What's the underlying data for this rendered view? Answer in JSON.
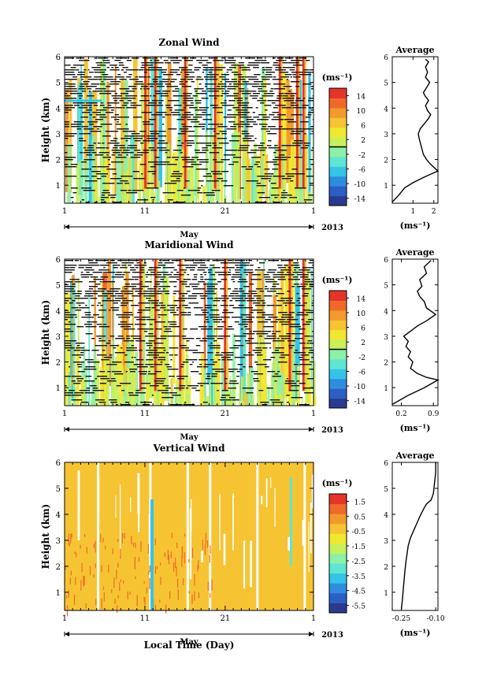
{
  "figure": {
    "xlabel": "Local Time (Day)",
    "month_label": "May",
    "year_label": "2013"
  },
  "chart_data": [
    {
      "type": "heatmap",
      "title": "Zonal Wind",
      "ylabel": "Height (km)",
      "x_ticks": [
        "1",
        "11",
        "21",
        "1"
      ],
      "x_range_days": [
        1,
        32
      ],
      "y_ticks": [
        "1",
        "2",
        "3",
        "4",
        "5",
        "6"
      ],
      "y_range_km": [
        0.3,
        6.0
      ],
      "colorbar": {
        "unit": "(ms⁻¹)",
        "range": [
          -16,
          16
        ],
        "ticks": [
          14,
          10,
          6,
          2,
          -2,
          -6,
          -10,
          -14
        ],
        "tick_labels": [
          "14",
          "10",
          "6",
          "2",
          "-2",
          "-6",
          "-10",
          "-14"
        ]
      },
      "average": {
        "title": "Average",
        "xlabel": "(ms⁻¹)",
        "x_ticks": [
          1,
          2
        ],
        "x_tick_labels": [
          "1",
          "2"
        ],
        "x_range": [
          0.0,
          2.2
        ],
        "y_ticks": [
          "1",
          "2",
          "3",
          "4",
          "5",
          "6"
        ],
        "y_range_km": [
          0.3,
          6.0
        ],
        "profile": [
          [
            0.0,
            0.35
          ],
          [
            0.3,
            0.6
          ],
          [
            0.6,
            0.9
          ],
          [
            1.0,
            1.1
          ],
          [
            1.5,
            1.3
          ],
          [
            1.9,
            1.45
          ],
          [
            2.2,
            1.55
          ],
          [
            2.0,
            1.7
          ],
          [
            1.8,
            1.85
          ],
          [
            1.65,
            2.0
          ],
          [
            1.5,
            2.2
          ],
          [
            1.4,
            2.5
          ],
          [
            1.3,
            2.8
          ],
          [
            1.25,
            3.0
          ],
          [
            1.35,
            3.2
          ],
          [
            1.55,
            3.4
          ],
          [
            1.75,
            3.6
          ],
          [
            1.85,
            3.75
          ],
          [
            1.7,
            3.9
          ],
          [
            1.6,
            4.1
          ],
          [
            1.75,
            4.3
          ],
          [
            1.6,
            4.45
          ],
          [
            1.5,
            4.6
          ],
          [
            1.65,
            4.8
          ],
          [
            1.8,
            5.0
          ],
          [
            1.6,
            5.2
          ],
          [
            1.7,
            5.4
          ],
          [
            1.6,
            5.6
          ],
          [
            1.75,
            5.8
          ],
          [
            1.6,
            5.9
          ]
        ]
      }
    },
    {
      "type": "heatmap",
      "title": "Maridional Wind",
      "ylabel": "Height (km)",
      "x_ticks": [
        "1",
        "11",
        "21",
        "1"
      ],
      "x_range_days": [
        1,
        32
      ],
      "y_ticks": [
        "1",
        "2",
        "3",
        "4",
        "5",
        "6"
      ],
      "y_range_km": [
        0.3,
        6.0
      ],
      "colorbar": {
        "unit": "(ms⁻¹)",
        "range": [
          -16,
          16
        ],
        "ticks": [
          14,
          10,
          6,
          2,
          -2,
          -6,
          -10,
          -14
        ],
        "tick_labels": [
          "14",
          "10",
          "6",
          "2",
          "-2",
          "-6",
          "-10",
          "-14"
        ]
      },
      "average": {
        "title": "Average",
        "xlabel": "(ms⁻¹)",
        "x_ticks": [
          0.2,
          0.9
        ],
        "x_tick_labels": [
          "0.2",
          "0.9"
        ],
        "x_range": [
          0.0,
          1.0
        ],
        "y_ticks": [
          "1",
          "2",
          "3",
          "4",
          "5",
          "6"
        ],
        "y_range_km": [
          0.3,
          6.0
        ],
        "profile": [
          [
            0.0,
            0.35
          ],
          [
            0.35,
            0.7
          ],
          [
            0.7,
            1.0
          ],
          [
            1.0,
            1.3
          ],
          [
            0.75,
            1.4
          ],
          [
            0.55,
            1.55
          ],
          [
            0.4,
            1.75
          ],
          [
            0.45,
            2.0
          ],
          [
            0.35,
            2.2
          ],
          [
            0.4,
            2.4
          ],
          [
            0.3,
            2.6
          ],
          [
            0.35,
            2.8
          ],
          [
            0.25,
            3.0
          ],
          [
            0.4,
            3.2
          ],
          [
            0.55,
            3.4
          ],
          [
            0.75,
            3.6
          ],
          [
            0.95,
            3.85
          ],
          [
            0.75,
            4.1
          ],
          [
            0.7,
            4.35
          ],
          [
            0.6,
            4.55
          ],
          [
            0.55,
            4.75
          ],
          [
            0.65,
            4.95
          ],
          [
            0.6,
            5.2
          ],
          [
            0.75,
            5.45
          ],
          [
            0.7,
            5.7
          ],
          [
            0.85,
            5.95
          ]
        ]
      }
    },
    {
      "type": "heatmap",
      "title": "Vertical Wind",
      "ylabel": "Height (km)",
      "x_ticks": [
        "1",
        "11",
        "21",
        "1"
      ],
      "x_range_days": [
        1,
        32
      ],
      "y_ticks": [
        "1",
        "2",
        "3",
        "4",
        "5",
        "6"
      ],
      "y_range_km": [
        0.3,
        6.0
      ],
      "colorbar": {
        "unit": "(ms⁻¹)",
        "range": [
          -6.0,
          2.0
        ],
        "ticks": [
          1.5,
          0.5,
          -0.5,
          -1.5,
          -2.5,
          -3.5,
          -4.5,
          -5.5
        ],
        "tick_labels": [
          "1.5",
          "0.5",
          "-0.5",
          "-1.5",
          "-2.5",
          "-3.5",
          "-4.5",
          "-5.5"
        ]
      },
      "average": {
        "title": "Average",
        "xlabel": "(ms⁻¹)",
        "x_ticks": [
          -0.25,
          -0.1
        ],
        "x_tick_labels": [
          "-0.25",
          "-0.10"
        ],
        "x_range": [
          -0.29,
          -0.09
        ],
        "y_ticks": [
          "1",
          "2",
          "3",
          "4",
          "5",
          "6"
        ],
        "y_range_km": [
          0.3,
          6.0
        ],
        "profile": [
          [
            -0.25,
            0.35
          ],
          [
            -0.245,
            0.8
          ],
          [
            -0.24,
            1.3
          ],
          [
            -0.235,
            1.8
          ],
          [
            -0.23,
            2.2
          ],
          [
            -0.225,
            2.5
          ],
          [
            -0.22,
            2.8
          ],
          [
            -0.21,
            3.1
          ],
          [
            -0.195,
            3.4
          ],
          [
            -0.18,
            3.7
          ],
          [
            -0.165,
            4.0
          ],
          [
            -0.15,
            4.25
          ],
          [
            -0.14,
            4.4
          ],
          [
            -0.12,
            4.55
          ],
          [
            -0.11,
            4.8
          ],
          [
            -0.105,
            5.2
          ],
          [
            -0.1,
            5.6
          ],
          [
            -0.1,
            6.0
          ]
        ]
      }
    }
  ]
}
